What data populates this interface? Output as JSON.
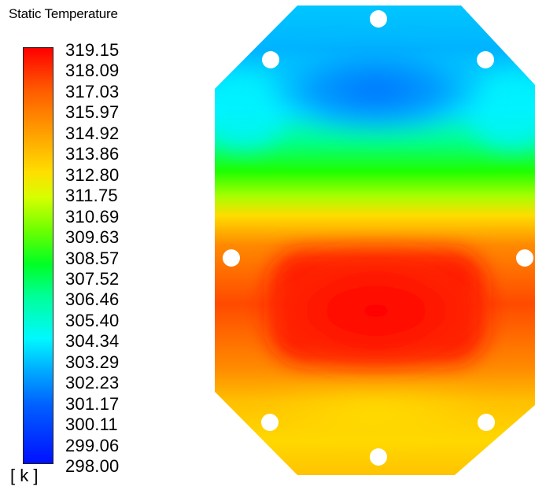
{
  "legend": {
    "title": "Static Temperature",
    "unit": "[ k ]",
    "ticks": [
      "319.15",
      "318.09",
      "317.03",
      "315.97",
      "314.92",
      "313.86",
      "312.80",
      "311.75",
      "310.69",
      "309.63",
      "308.57",
      "307.52",
      "306.46",
      "305.40",
      "304.34",
      "303.29",
      "302.23",
      "301.17",
      "300.11",
      "299.06",
      "298.00"
    ],
    "colors": {
      "max": "#ff0000",
      "mid": "#00ff24",
      "min": "#0010ff"
    }
  },
  "contour": {
    "field": "Static Temperature",
    "hot_region": "center-lower",
    "cold_region": "top",
    "hole_count": 8
  }
}
